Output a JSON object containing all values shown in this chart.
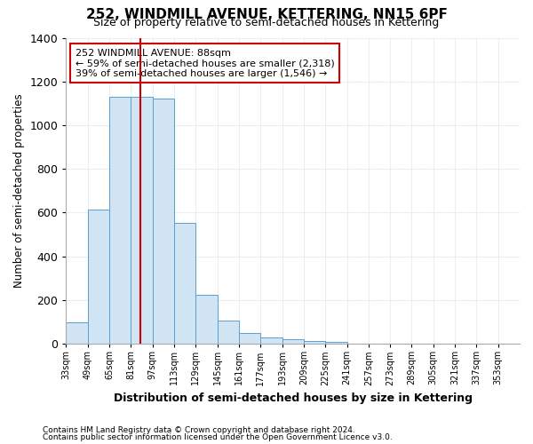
{
  "title": "252, WINDMILL AVENUE, KETTERING, NN15 6PF",
  "subtitle": "Size of property relative to semi-detached houses in Kettering",
  "xlabel": "Distribution of semi-detached houses by size in Kettering",
  "ylabel": "Number of semi-detached properties",
  "footnote1": "Contains HM Land Registry data © Crown copyright and database right 2024.",
  "footnote2": "Contains public sector information licensed under the Open Government Licence v3.0.",
  "annotation_line1": "252 WINDMILL AVENUE: 88sqm",
  "annotation_line2": "← 59% of semi-detached houses are smaller (2,318)",
  "annotation_line3": "39% of semi-detached houses are larger (1,546) →",
  "property_size": 88,
  "bar_color": "#d0e4f4",
  "bar_edge_color": "#5a9fd4",
  "redline_color": "#cc0000",
  "background_color": "#ffffff",
  "tick_labels": [
    "33sqm",
    "49sqm",
    "65sqm",
    "81sqm",
    "97sqm",
    "113sqm",
    "129sqm",
    "145sqm",
    "161sqm",
    "177sqm",
    "193sqm",
    "209sqm",
    "225sqm",
    "241sqm",
    "257sqm",
    "273sqm",
    "289sqm",
    "305sqm",
    "321sqm",
    "337sqm",
    "353sqm"
  ],
  "bin_edges": [
    33,
    49,
    65,
    81,
    97,
    113,
    129,
    145,
    161,
    177,
    193,
    209,
    225,
    241,
    257,
    273,
    289,
    305,
    321,
    337,
    353,
    369
  ],
  "values": [
    100,
    615,
    1130,
    1130,
    1120,
    555,
    225,
    105,
    50,
    30,
    20,
    15,
    10,
    0,
    0,
    0,
    0,
    0,
    0,
    0,
    0
  ],
  "ylim": [
    0,
    1400
  ],
  "yticks": [
    0,
    200,
    400,
    600,
    800,
    1000,
    1200,
    1400
  ],
  "grid_color": "#e8eef4",
  "annotation_box_facecolor": "#ffffff",
  "annotation_box_edge": "#cc0000"
}
